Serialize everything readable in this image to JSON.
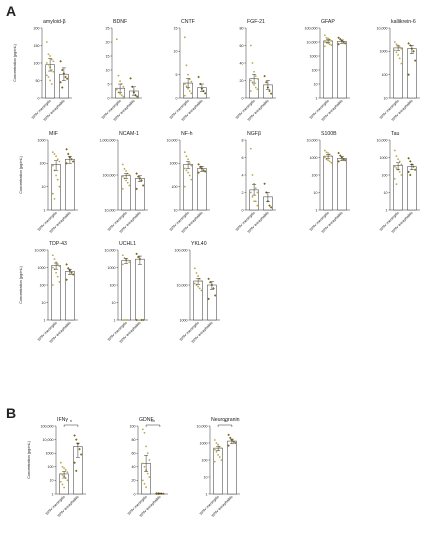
{
  "panels": [
    {
      "letter": "A"
    },
    {
      "letter": "B"
    }
  ],
  "colors": {
    "meningitis": "#b8a94c",
    "encephalitis": "#7a6a22",
    "bar_fill": "#ffffff",
    "axis": "#333333"
  },
  "chart_data": [
    {
      "id": "amyloid",
      "type": "bar",
      "title": "amyloid-β",
      "ylabel": "Concentration (pg/mL)",
      "scale": "linear",
      "ylim": [
        0,
        200
      ],
      "yticks": [
        "0",
        "50",
        "100",
        "150",
        "200"
      ],
      "categories": [
        "WNV meningitis",
        "WNV encephalitis"
      ],
      "values": [
        95,
        68
      ],
      "errors": [
        18,
        18
      ],
      "points": [
        [
          160,
          125,
          120,
          110,
          105,
          100,
          95,
          88,
          80,
          75,
          65,
          60,
          50,
          40
        ],
        [
          105,
          80,
          70,
          60,
          55,
          45,
          30
        ]
      ]
    },
    {
      "id": "bdnf",
      "type": "bar",
      "title": "BDNF",
      "scale": "linear",
      "ylim": [
        0,
        25
      ],
      "yticks": [
        "0",
        "5",
        "10",
        "15",
        "20",
        "25"
      ],
      "categories": [
        "WNV meningitis",
        "WNV encephalitis"
      ],
      "values": [
        3.5,
        2.5
      ],
      "errors": [
        1.5,
        1.5
      ],
      "points": [
        [
          21,
          8,
          6,
          5,
          4,
          3,
          2,
          1.5,
          1,
          0.5
        ],
        [
          7,
          4,
          2,
          1,
          0.5
        ]
      ]
    },
    {
      "id": "cntf",
      "type": "bar",
      "title": "CNTF",
      "scale": "linear",
      "ylim": [
        0,
        15
      ],
      "yticks": [
        "0",
        "5",
        "10",
        "15"
      ],
      "categories": [
        "WNV meningitis",
        "WNV encephalitis"
      ],
      "values": [
        3.2,
        2.2
      ],
      "errors": [
        1,
        0.8
      ],
      "points": [
        [
          13,
          7,
          5,
          4,
          3.5,
          3,
          2.5,
          2,
          1.5,
          1,
          0.5
        ],
        [
          4.5,
          3,
          2,
          1.5,
          1
        ]
      ]
    },
    {
      "id": "fgf21",
      "type": "bar",
      "title": "FGF-21",
      "scale": "linear",
      "ylim": [
        0,
        80
      ],
      "yticks": [
        "0",
        "20",
        "40",
        "60",
        "80"
      ],
      "categories": [
        "WNV meningitis",
        "WNV encephalitis"
      ],
      "values": [
        22,
        15
      ],
      "errors": [
        5,
        5
      ],
      "points": [
        [
          60,
          40,
          30,
          25,
          22,
          20,
          18,
          15,
          12,
          10,
          8
        ],
        [
          25,
          18,
          12,
          8,
          5
        ]
      ]
    },
    {
      "id": "gfap",
      "type": "bar",
      "title": "GFAP",
      "scale": "log",
      "ylim": [
        1,
        100000
      ],
      "yticks": [
        "1",
        "10",
        "100",
        "1000",
        "10,000",
        "100,000"
      ],
      "categories": [
        "WNV meningitis",
        "WNV encephalitis"
      ],
      "values": [
        12000,
        11000
      ],
      "errors": [
        2500,
        3000
      ],
      "points": [
        [
          30000,
          20000,
          18000,
          15000,
          12000,
          10000,
          9000,
          8000,
          7000,
          6000,
          5000
        ],
        [
          20000,
          16000,
          12000,
          10000,
          8000,
          7000
        ]
      ]
    },
    {
      "id": "kallikrein",
      "type": "bar",
      "title": "kallikrein-6",
      "scale": "log",
      "ylim": [
        10,
        10000
      ],
      "yticks": [
        "10",
        "100",
        "1000",
        "10,000"
      ],
      "categories": [
        "WNV meningitis",
        "WNV encephalitis"
      ],
      "values": [
        1400,
        1300
      ],
      "errors": [
        300,
        500
      ],
      "points": [
        [
          2500,
          2000,
          1800,
          1500,
          1300,
          1100,
          900,
          700,
          500,
          300
        ],
        [
          2200,
          1800,
          1300,
          1000,
          400,
          100
        ]
      ]
    },
    {
      "id": "mif",
      "type": "bar",
      "title": "MIF",
      "ylabel": "Concentration (pg/mL)",
      "scale": "log",
      "ylim": [
        1,
        1000
      ],
      "yticks": [
        "1",
        "10",
        "100",
        "1000"
      ],
      "categories": [
        "WNV meningitis",
        "WNV encephalitis"
      ],
      "values": [
        90,
        150
      ],
      "errors": [
        40,
        50
      ],
      "points": [
        [
          300,
          250,
          200,
          150,
          120,
          80,
          50,
          30,
          20,
          10,
          5,
          3
        ],
        [
          400,
          250,
          180,
          150,
          120,
          100
        ]
      ]
    },
    {
      "id": "ncam1",
      "type": "bar",
      "title": "NCAM-1",
      "scale": "log",
      "ylim": [
        10000,
        1000000
      ],
      "yticks": [
        "10,000",
        "100,000",
        "1,000,000"
      ],
      "categories": [
        "WNV meningitis",
        "WNV encephalitis"
      ],
      "values": [
        95000,
        80000
      ],
      "errors": [
        15000,
        15000
      ],
      "points": [
        [
          200000,
          150000,
          130000,
          110000,
          100000,
          90000,
          80000,
          70000,
          60000,
          50000,
          40000
        ],
        [
          110000,
          90000,
          80000,
          70000,
          50000,
          40000
        ]
      ]
    },
    {
      "id": "nfh",
      "type": "bar",
      "title": "NF-h",
      "scale": "log",
      "ylim": [
        10,
        10000
      ],
      "yticks": [
        "10",
        "100",
        "1000",
        "10,000"
      ],
      "categories": [
        "WNV meningitis",
        "WNV encephalitis"
      ],
      "values": [
        900,
        600
      ],
      "errors": [
        300,
        150
      ],
      "points": [
        [
          3000,
          2000,
          1500,
          1000,
          800,
          600,
          500,
          400,
          300,
          200,
          100
        ],
        [
          900,
          700,
          600,
          500,
          450,
          400
        ]
      ]
    },
    {
      "id": "ngfb",
      "type": "bar",
      "title": "NGFβ",
      "scale": "linear",
      "ylim": [
        0,
        8
      ],
      "yticks": [
        "0",
        "2",
        "4",
        "6",
        "8"
      ],
      "categories": [
        "WNV meningitis",
        "WNV encephalitis"
      ],
      "values": [
        2.3,
        1.5
      ],
      "errors": [
        0.6,
        0.5
      ],
      "points": [
        [
          7,
          4,
          3,
          2.5,
          2,
          2,
          1.5,
          1,
          1,
          0.5
        ],
        [
          3,
          2,
          1,
          0.5,
          0.3
        ]
      ]
    },
    {
      "id": "s100b",
      "type": "bar",
      "title": "S100B",
      "scale": "log",
      "ylim": [
        1,
        10000
      ],
      "yticks": [
        "1",
        "10",
        "100",
        "1000",
        "10,000"
      ],
      "categories": [
        "WNV meningitis",
        "WNV encephalitis"
      ],
      "values": [
        1200,
        900
      ],
      "errors": [
        300,
        250
      ],
      "points": [
        [
          2500,
          2000,
          1800,
          1500,
          1200,
          1000,
          800,
          700,
          600,
          500
        ],
        [
          1800,
          1300,
          1000,
          800,
          700,
          600
        ]
      ]
    },
    {
      "id": "tau",
      "type": "bar",
      "title": "Tau",
      "scale": "log",
      "ylim": [
        1,
        10000
      ],
      "yticks": [
        "1",
        "10",
        "100",
        "1000",
        "10,000"
      ],
      "categories": [
        "WNV meningitis",
        "WNV encephalitis"
      ],
      "values": [
        350,
        300
      ],
      "errors": [
        150,
        100
      ],
      "points": [
        [
          2500,
          1200,
          800,
          600,
          400,
          300,
          250,
          200,
          150,
          100,
          60,
          30
        ],
        [
          900,
          600,
          400,
          300,
          200,
          150,
          100
        ]
      ]
    },
    {
      "id": "tdp43",
      "type": "bar",
      "title": "TDP-43",
      "ylabel": "Concentration (pg/mL)",
      "scale": "log",
      "ylim": [
        1,
        10000
      ],
      "yticks": [
        "1",
        "10",
        "100",
        "1000",
        "10,000"
      ],
      "categories": [
        "WNV meningitis",
        "WNV encephalitis"
      ],
      "values": [
        1300,
        600
      ],
      "errors": [
        500,
        200
      ],
      "points": [
        [
          5000,
          3000,
          2000,
          1500,
          1200,
          1000,
          800,
          500,
          300,
          150,
          100
        ],
        [
          1500,
          900,
          700,
          500,
          400,
          200
        ]
      ]
    },
    {
      "id": "uchl1",
      "type": "bar",
      "title": "UCHL1",
      "scale": "log",
      "ylim": [
        1,
        10000
      ],
      "yticks": [
        "1",
        "10",
        "100",
        "1000",
        "10,000"
      ],
      "categories": [
        "WNV meningitis",
        "WNV encephalitis"
      ],
      "values": [
        2500,
        3000
      ],
      "errors": [
        800,
        1500
      ],
      "points": [
        [
          5000,
          3500,
          3000,
          2500,
          2000,
          1500,
          1,
          1,
          1
        ],
        [
          6000,
          4000,
          3000,
          1,
          1,
          1
        ]
      ]
    },
    {
      "id": "ykl40",
      "type": "bar",
      "title": "YKL40",
      "scale": "log",
      "ylim": [
        1000,
        100000
      ],
      "yticks": [
        "1000",
        "10,000",
        "100,000"
      ],
      "categories": [
        "WNV meningitis",
        "WNV encephalitis"
      ],
      "values": [
        13000,
        10000
      ],
      "errors": [
        2500,
        2500
      ],
      "points": [
        [
          30000,
          22000,
          18000,
          15000,
          13000,
          11000,
          10000,
          9000,
          8000,
          7000
        ],
        [
          15000,
          12000,
          10000,
          8000,
          5000,
          4000
        ]
      ]
    },
    {
      "id": "ifng",
      "type": "bar",
      "title": "IFNγ",
      "ylabel": "Concentration (pg/mL)",
      "scale": "log",
      "ylim": [
        1,
        100000
      ],
      "yticks": [
        "1",
        "10",
        "100",
        "1000",
        "10,000",
        "100,000"
      ],
      "categories": [
        "WNV meningitis",
        "WNV encephalitis"
      ],
      "values": [
        30,
        3000
      ],
      "errors": [
        15,
        2500
      ],
      "points": [
        [
          200,
          100,
          80,
          60,
          40,
          30,
          25,
          20,
          15,
          10,
          8,
          5,
          3
        ],
        [
          20000,
          10000,
          5000,
          2000,
          800,
          200,
          50
        ]
      ],
      "significance": "*"
    },
    {
      "id": "gdnf",
      "type": "bar",
      "title": "GDNF",
      "scale": "linear",
      "ylim": [
        0,
        100
      ],
      "yticks": [
        "0",
        "20",
        "40",
        "60",
        "80",
        "100"
      ],
      "categories": [
        "WNV meningitis",
        "WNV encephalitis"
      ],
      "values": [
        45,
        0.5
      ],
      "errors": [
        12,
        0.3
      ],
      "points": [
        [
          95,
          90,
          70,
          60,
          50,
          45,
          40,
          35,
          30,
          25,
          20,
          15,
          10
        ],
        [
          1,
          0.8,
          0.6,
          0.5,
          0.4,
          0.3,
          0.2
        ]
      ],
      "significance": "**"
    },
    {
      "id": "neurogranin",
      "type": "bar",
      "title": "Neurogranin",
      "scale": "log",
      "ylim": [
        1,
        10000
      ],
      "yticks": [
        "1",
        "10",
        "100",
        "1000",
        "10,000"
      ],
      "categories": [
        "WNV meningitis",
        "WNV encephalitis"
      ],
      "values": [
        500,
        1300
      ],
      "errors": [
        150,
        400
      ],
      "points": [
        [
          1500,
          1000,
          800,
          600,
          500,
          400,
          300,
          200,
          150,
          100,
          80
        ],
        [
          3000,
          2000,
          1500,
          1200,
          1000,
          700
        ]
      ],
      "significance": "*"
    }
  ]
}
